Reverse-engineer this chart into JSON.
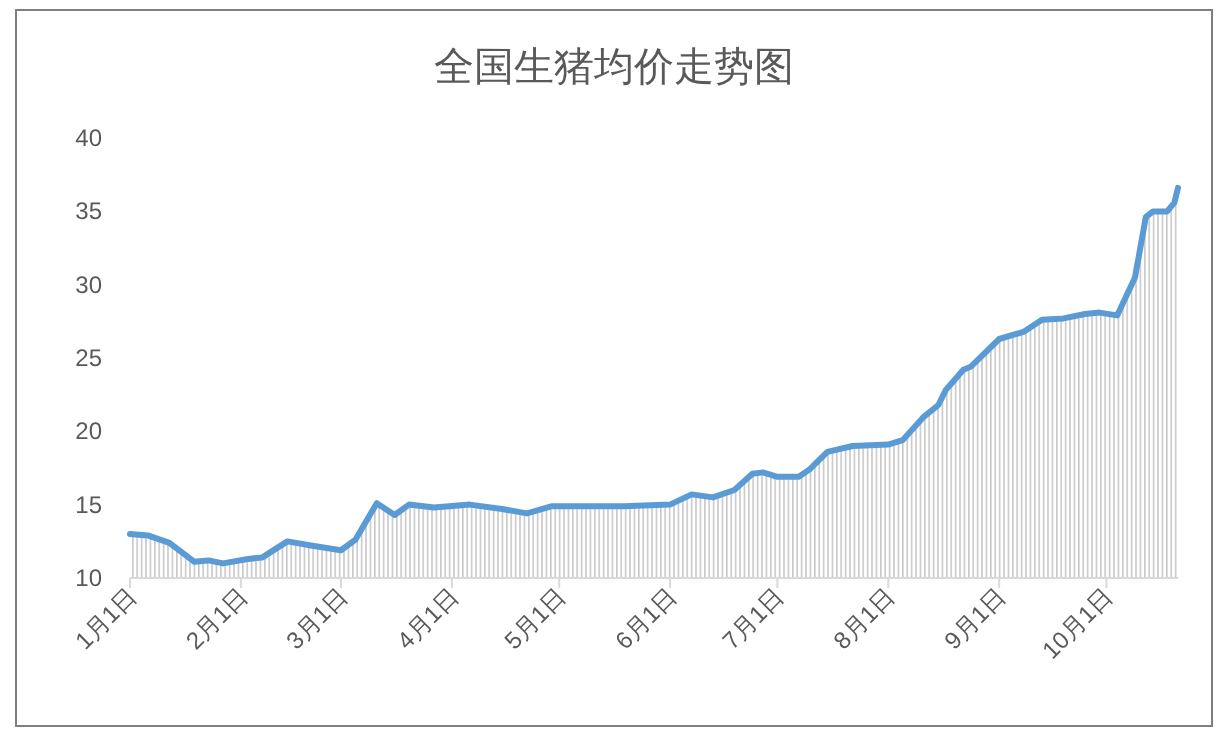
{
  "chart_data": {
    "type": "area",
    "title": "全国生猪均价走势图",
    "x": [
      "--01-01",
      "--01-06",
      "--01-12",
      "--01-19",
      "--01-23",
      "--01-27",
      "--02-03",
      "--02-07",
      "--02-14",
      "--02-21",
      "--03-01",
      "--03-05",
      "--03-11",
      "--03-16",
      "--03-20",
      "--03-27",
      "--04-06",
      "--04-15",
      "--04-22",
      "--04-29",
      "--05-19",
      "--06-01",
      "--06-07",
      "--06-13",
      "--06-19",
      "--06-24",
      "--06-27",
      "--07-01",
      "--07-07",
      "--07-10",
      "--07-15",
      "--07-22",
      "--08-01",
      "--08-05",
      "--08-11",
      "--08-15",
      "--08-17",
      "--08-22",
      "--08-24",
      "--09-01",
      "--09-08",
      "--09-13",
      "--09-19",
      "--09-25",
      "--09-29",
      "--10-04",
      "--10-09",
      "--10-12",
      "--10-14",
      "--10-18",
      "--10-20",
      "--10-21"
    ],
    "series": [
      {
        "color": "#5b9bd5",
        "values": [
          13.0,
          12.9,
          12.4,
          11.1,
          11.2,
          11.0,
          11.3,
          11.4,
          12.5,
          12.2,
          11.9,
          12.6,
          15.1,
          14.3,
          15.0,
          14.8,
          15.0,
          14.7,
          14.4,
          14.9,
          14.9,
          15.0,
          15.7,
          15.5,
          16.0,
          17.1,
          17.2,
          16.9,
          16.9,
          17.4,
          18.6,
          19.0,
          19.1,
          19.4,
          21.0,
          21.8,
          22.8,
          24.2,
          24.4,
          26.3,
          26.8,
          27.6,
          27.7,
          28.0,
          28.1,
          27.9,
          30.5,
          34.6,
          35.0,
          35.0,
          35.6,
          36.6
        ]
      }
    ],
    "xlim": [
      "--01-01",
      "--10-21"
    ],
    "xticks": [
      {
        "value": "--01-01",
        "label": "1月1日"
      },
      {
        "value": "--02-01",
        "label": "2月1日"
      },
      {
        "value": "--03-01",
        "label": "3月1日"
      },
      {
        "value": "--04-01",
        "label": "4月1日"
      },
      {
        "value": "--05-01",
        "label": "5月1日"
      },
      {
        "value": "--06-01",
        "label": "6月1日"
      },
      {
        "value": "--07-01",
        "label": "7月1日"
      },
      {
        "value": "--08-01",
        "label": "8月1日"
      },
      {
        "value": "--09-01",
        "label": "9月1日"
      },
      {
        "value": "--10-01",
        "label": "10月1日"
      }
    ],
    "ylim": [
      10,
      40
    ],
    "yticks": [
      10,
      15,
      20,
      25,
      30,
      35,
      40
    ]
  }
}
